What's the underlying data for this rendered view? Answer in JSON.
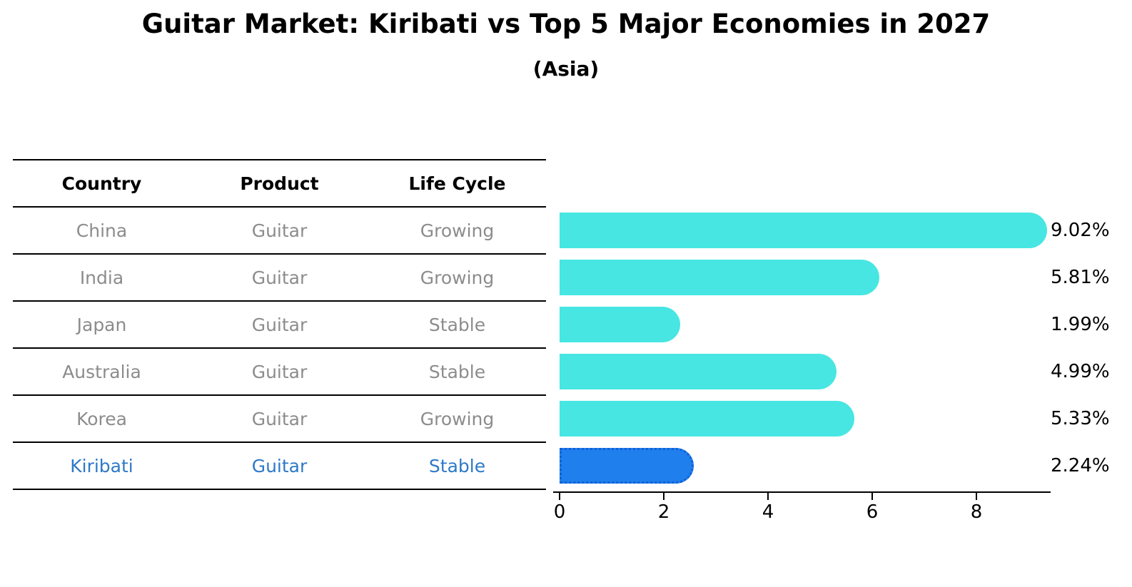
{
  "title": "Guitar Market: Kiribati vs Top 5 Major Economies in 2027",
  "subtitle": "(Asia)",
  "table": {
    "columns": [
      "Country",
      "Product",
      "Life Cycle"
    ],
    "rows": [
      {
        "country": "China",
        "product": "Guitar",
        "life_cycle": "Growing",
        "highlight": false
      },
      {
        "country": "India",
        "product": "Guitar",
        "life_cycle": "Growing",
        "highlight": false
      },
      {
        "country": "Japan",
        "product": "Guitar",
        "life_cycle": "Stable",
        "highlight": false
      },
      {
        "country": "Australia",
        "product": "Guitar",
        "life_cycle": "Stable",
        "highlight": false
      },
      {
        "country": "Korea",
        "product": "Guitar",
        "life_cycle": "Growing",
        "highlight": false
      },
      {
        "country": "Kiribati",
        "product": "Guitar",
        "life_cycle": "Stable",
        "highlight": true
      }
    ]
  },
  "chart_data": {
    "type": "bar",
    "orientation": "horizontal",
    "title": "Guitar Market: Kiribati vs Top 5 Major Economies in 2027 (Asia)",
    "categories": [
      "China",
      "India",
      "Japan",
      "Australia",
      "Korea",
      "Kiribati"
    ],
    "values": [
      9.02,
      5.81,
      1.99,
      4.99,
      5.33,
      2.24
    ],
    "labels": [
      "9.02%",
      "5.81%",
      "1.99%",
      "4.99%",
      "5.33%",
      "2.24%"
    ],
    "xlabel": "",
    "ylabel": "",
    "xlim": [
      0,
      9.42
    ],
    "xticks": [
      0,
      2,
      4,
      6,
      8
    ],
    "grid": false,
    "legend": false,
    "highlight_category": "Kiribati",
    "colors": {
      "bar_default": "#47e6e2",
      "bar_highlight": "#1f7fec",
      "highlight_border": "#1060d8",
      "highlight_text": "#2e79c7",
      "row_text": "#8c8c8c",
      "header_text": "#000000",
      "value_text": "#000000"
    }
  }
}
